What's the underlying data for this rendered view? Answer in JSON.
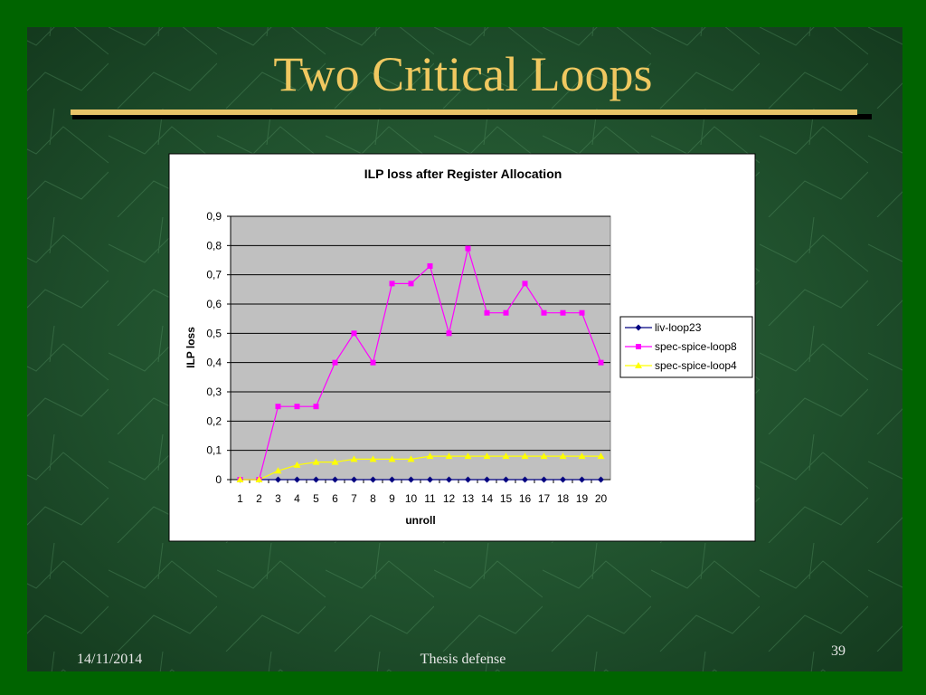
{
  "slide": {
    "title": "Two Critical Loops",
    "date": "14/11/2014",
    "footer": "Thesis defense",
    "page": "39"
  },
  "chart_data": {
    "type": "line",
    "title": "ILP loss after Register Allocation",
    "x_label": "unroll",
    "y_label": "ILP loss",
    "categories": [
      "1",
      "2",
      "3",
      "4",
      "5",
      "6",
      "7",
      "8",
      "9",
      "10",
      "11",
      "12",
      "13",
      "14",
      "15",
      "16",
      "17",
      "18",
      "19",
      "20"
    ],
    "series": [
      {
        "name": "liv-loop23",
        "color": "#000080",
        "marker": "diamond",
        "values": [
          0,
          0,
          0,
          0,
          0,
          0,
          0,
          0,
          0,
          0,
          0,
          0,
          0,
          0,
          0,
          0,
          0,
          0,
          0,
          0
        ]
      },
      {
        "name": "spec-spice-loop8",
        "color": "#ff00ff",
        "marker": "square",
        "values": [
          0,
          0,
          0.25,
          0.25,
          0.25,
          0.4,
          0.5,
          0.4,
          0.67,
          0.67,
          0.73,
          0.5,
          0.79,
          0.57,
          0.57,
          0.67,
          0.57,
          0.57,
          0.57,
          0.4
        ]
      },
      {
        "name": "spec-spice-loop4",
        "color": "#ffff00",
        "marker": "triangle",
        "values": [
          0,
          0,
          0.03,
          0.05,
          0.06,
          0.06,
          0.07,
          0.07,
          0.07,
          0.07,
          0.08,
          0.08,
          0.08,
          0.08,
          0.08,
          0.08,
          0.08,
          0.08,
          0.08,
          0.08
        ]
      }
    ],
    "ylim": [
      0,
      0.9
    ],
    "yticks": [
      0,
      {
        "value": 0.1,
        "label": "0,1"
      },
      {
        "value": 0.2,
        "label": "0,2"
      },
      {
        "value": 0.3,
        "label": "0,3"
      },
      {
        "value": 0.4,
        "label": "0,4"
      },
      {
        "value": 0.5,
        "label": "0,5"
      },
      {
        "value": 0.6,
        "label": "0,6"
      },
      {
        "value": 0.7,
        "label": "0,7"
      },
      {
        "value": 0.8,
        "label": "0,8"
      },
      {
        "value": 0.9,
        "label": "0,9"
      }
    ],
    "grid": true,
    "legend": "right"
  }
}
